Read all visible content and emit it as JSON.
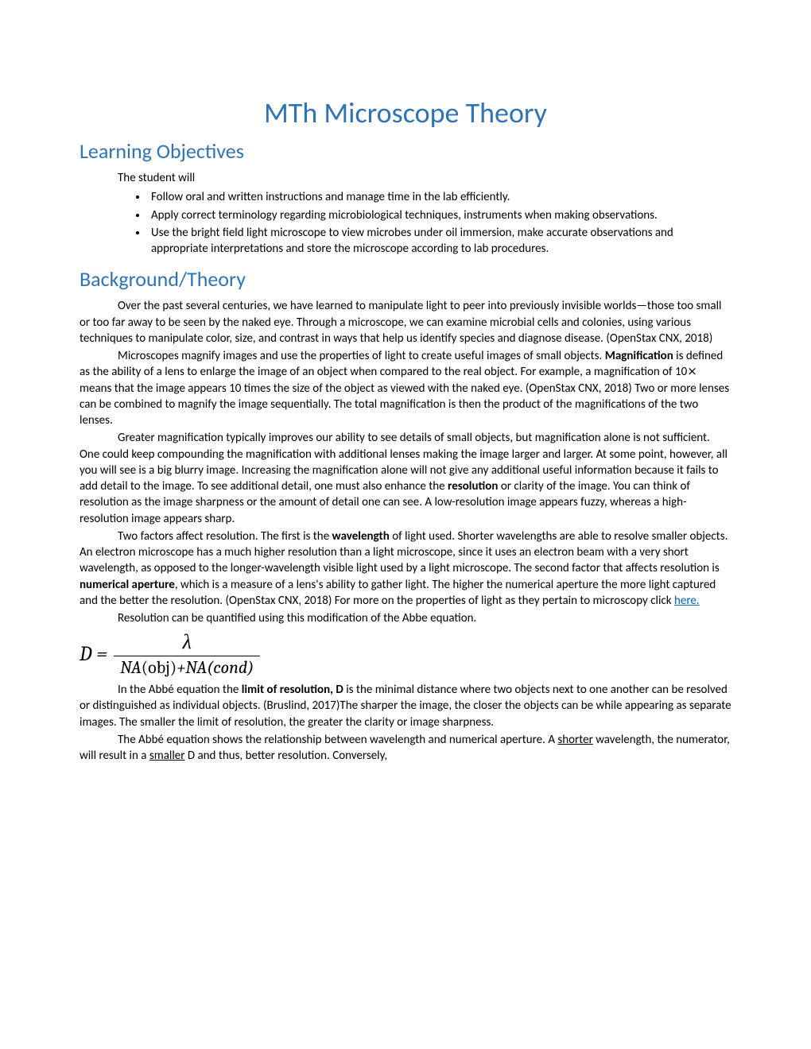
{
  "title": "MTh Microscope Theory",
  "sections": {
    "objectives": {
      "heading": "Learning Objectives",
      "intro": "The student will",
      "items": [
        "Follow oral and written instructions and manage time in the lab efficiently.",
        "Apply correct terminology regarding microbiological techniques, instruments when making observations.",
        "Use the bright field light microscope to view microbes under oil immersion, make accurate observations and appropriate interpretations and store the microscope according to lab procedures."
      ]
    },
    "background": {
      "heading": "Background/Theory",
      "p1": "Over the past several centuries, we have learned to manipulate light to peer into previously invisible worlds—those too small or too far away to be seen by the naked eye. Through a microscope, we can examine microbial cells and colonies, using various techniques to manipulate color, size, and contrast in ways that help us identify species and diagnose disease. (OpenStax CNX, 2018)",
      "p2_a": "Microscopes magnify images and use the properties of light to create useful images of small objects. ",
      "p2_bold1": "Magnification",
      "p2_b": " is defined as the ability of a lens to enlarge the image of an object when compared to the real object. For example, a magnification of 10⨯ means that the image appears 10 times the size of the object as viewed with the naked eye. (OpenStax CNX, 2018)  Two or more lenses can be combined to magnify the image sequentially.  The total magnification is then the product of the magnifications of the two lenses.",
      "p3_a": "Greater magnification typically improves our ability to see details of small objects, but magnification alone is not sufficient.  One could keep compounding the magnification with additional lenses making the image larger and larger. At some point, however, all you will see is a big blurry image.  Increasing the magnification alone will not give any additional useful information because it fails to add detail to the image.  To see additional detail, one must also enhance the ",
      "p3_bold1": "resolution",
      "p3_b": " or clarity of the image.  You can think of resolution as the image sharpness or the amount of detail one can see.  A low-resolution image appears fuzzy, whereas a high-resolution image appears sharp.",
      "p4_a": "Two factors affect resolution. The first is the ",
      "p4_bold1": "wavelength",
      "p4_b": " of light used. Shorter wavelengths are able to resolve smaller objects.  An electron microscope has a much higher resolution than a light microscope, since it uses an electron beam with a very short wavelength, as opposed to the longer-wavelength visible light used by a light microscope. The second factor that affects resolution is ",
      "p4_bold2": "numerical aperture",
      "p4_c": ", which is a measure of a lens's ability to gather light. The higher the numerical aperture the more light captured and the better the resolution. (OpenStax CNX, 2018)  For more on the properties of light as they pertain to microscopy click ",
      "p4_link": "here.",
      "p5": "Resolution can be quantified using this modification of the Abbe equation.",
      "equation": {
        "lhs": "D =",
        "numerator": "λ",
        "den_a": "NA",
        "den_b": "(obj)",
        "den_c": "+NA(cond)"
      },
      "p6_a": "In the Abbé equation the ",
      "p6_bold1": "limit of resolution, D",
      "p6_b": " is the minimal distance where two objects next to one another can be resolved or distinguished as individual objects. (Bruslind, 2017)The sharper the image, the closer the objects can be while appearing as separate images.  The smaller the limit of resolution, the greater the clarity or image sharpness.",
      "p7_a": "The Abbé equation shows the relationship between wavelength and numerical aperture. A ",
      "p7_u1": "shorter",
      "p7_b": " wavelength, the numerator, will result in a ",
      "p7_u2": "smaller",
      "p7_c": " D and thus, better resolution.  Conversely,"
    }
  },
  "colors": {
    "heading_color": "#2e74b5",
    "link_color": "#0563c1",
    "text_color": "#000000",
    "background": "#ffffff"
  },
  "typography": {
    "title_fontsize": 36,
    "heading_fontsize": 26,
    "body_fontsize": 15,
    "equation_fontsize": 26,
    "body_family": "Calibri",
    "heading_family": "Calibri Light",
    "math_family": "Cambria Math"
  }
}
